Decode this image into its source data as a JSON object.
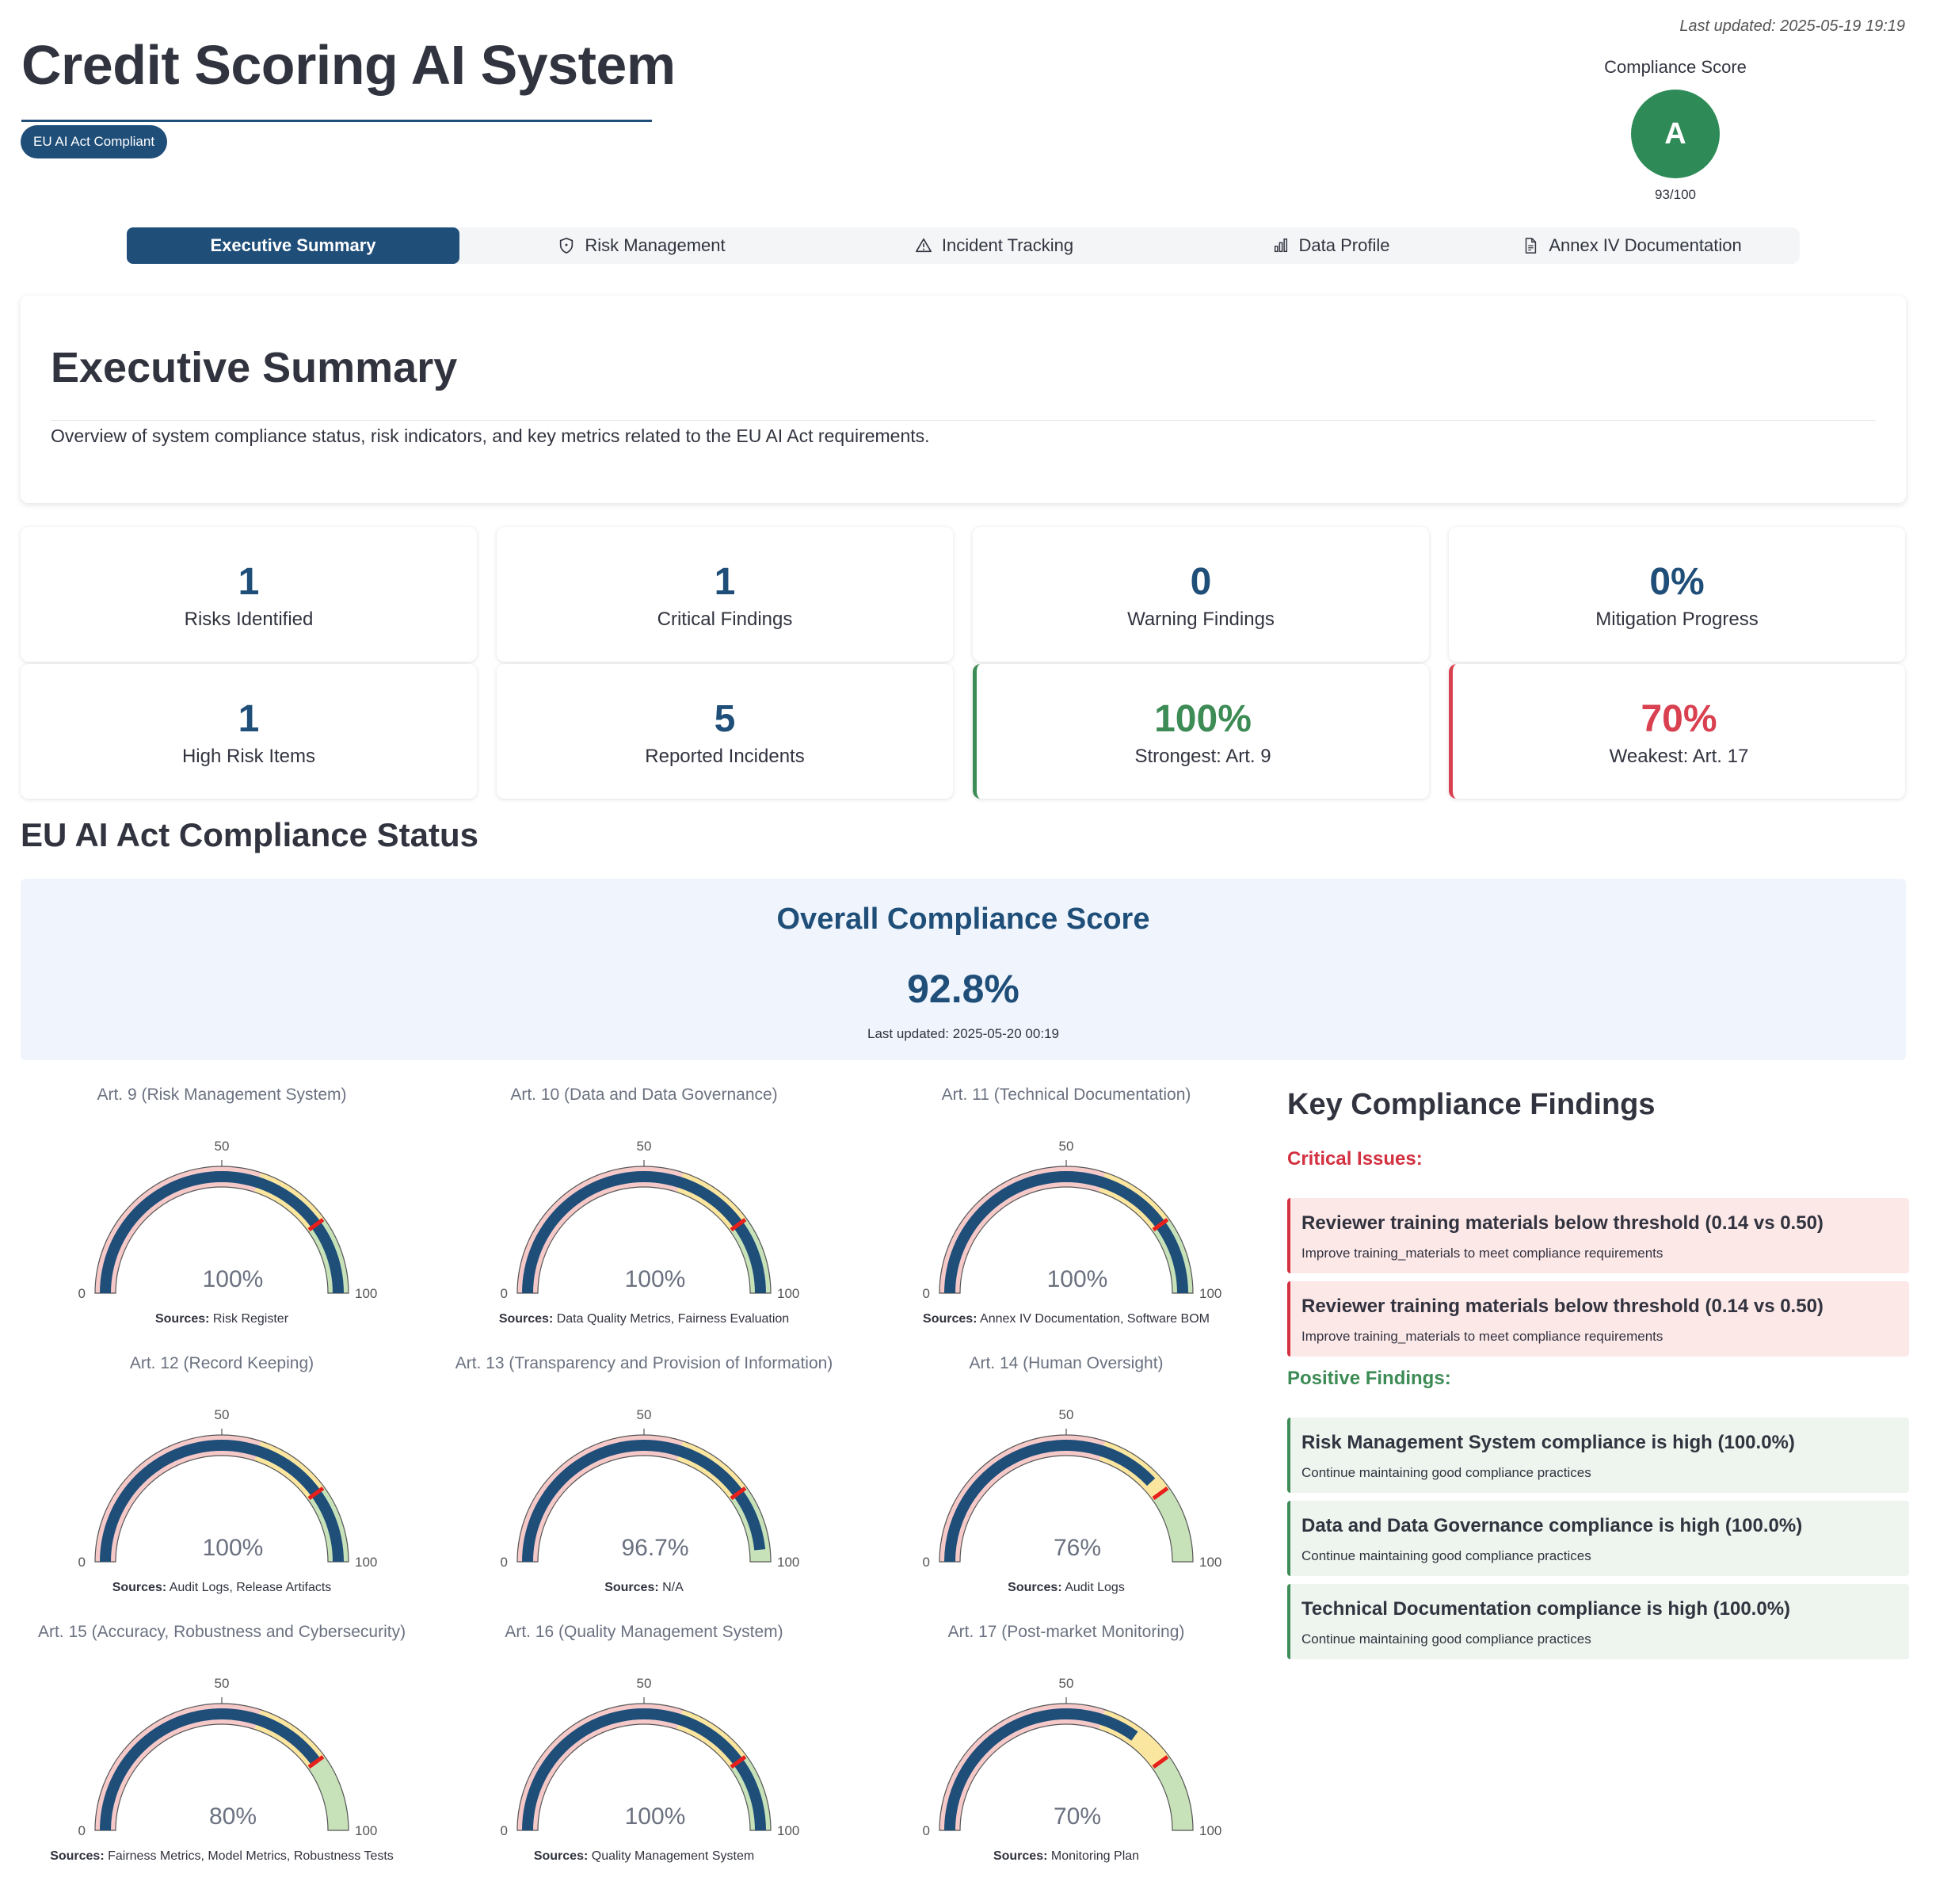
{
  "header": {
    "last_updated": "Last updated: 2025-05-19 19:19",
    "title": "Credit Scoring AI System",
    "badge": "EU AI Act Compliant",
    "compliance_label": "Compliance Score",
    "compliance_grade": "A",
    "compliance_score": "93/100",
    "grade_color": "#2e8b57"
  },
  "tabs": [
    {
      "label": "Executive Summary",
      "icon": "",
      "active": true
    },
    {
      "label": "Risk Management",
      "icon": "shield-icon",
      "active": false
    },
    {
      "label": "Incident Tracking",
      "icon": "warning-icon",
      "active": false
    },
    {
      "label": "Data Profile",
      "icon": "bar-chart-icon",
      "active": false
    },
    {
      "label": "Annex IV Documentation",
      "icon": "document-icon",
      "active": false
    }
  ],
  "executive": {
    "heading": "Executive Summary",
    "description": "Overview of system compliance status, risk indicators, and key metrics related to the EU AI Act requirements."
  },
  "metrics": [
    {
      "value": "1",
      "label": "Risks Identified"
    },
    {
      "value": "1",
      "label": "Critical Findings"
    },
    {
      "value": "0",
      "label": "Warning Findings"
    },
    {
      "value": "0%",
      "label": "Mitigation Progress"
    },
    {
      "value": "1",
      "label": "High Risk Items"
    },
    {
      "value": "5",
      "label": "Reported Incidents"
    },
    {
      "value": "100%",
      "label": "Strongest: Art. 9"
    },
    {
      "value": "70%",
      "label": "Weakest: Art. 17"
    }
  ],
  "compliance": {
    "section_title": "EU AI Act Compliance Status",
    "overall_title": "Overall Compliance Score",
    "overall_value": "92.8%",
    "overall_updated": "Last updated: 2025-05-20 00:19"
  },
  "gauges": [
    {
      "title": "Art. 9 (Risk Management System)",
      "value": 100,
      "display": "100%",
      "sources_label": "Sources:",
      "sources": "Risk Register"
    },
    {
      "title": "Art. 10 (Data and Data Governance)",
      "value": 100,
      "display": "100%",
      "sources_label": "Sources:",
      "sources": "Data Quality Metrics, Fairness Evaluation"
    },
    {
      "title": "Art. 11 (Technical Documentation)",
      "value": 100,
      "display": "100%",
      "sources_label": "Sources:",
      "sources": "Annex IV Documentation, Software BOM"
    },
    {
      "title": "Art. 12 (Record Keeping)",
      "value": 100,
      "display": "100%",
      "sources_label": "Sources:",
      "sources": "Audit Logs, Release Artifacts"
    },
    {
      "title": "Art. 13 (Transparency and Provision of Information)",
      "value": 96.7,
      "display": "96.7%",
      "sources_label": "Sources:",
      "sources": "N/A"
    },
    {
      "title": "Art. 14 (Human Oversight)",
      "value": 76,
      "display": "76%",
      "sources_label": "Sources:",
      "sources": "Audit Logs"
    },
    {
      "title": "Art. 15 (Accuracy, Robustness and Cybersecurity)",
      "value": 80,
      "display": "80%",
      "sources_label": "Sources:",
      "sources": "Fairness Metrics, Model Metrics, Robustness Tests"
    },
    {
      "title": "Art. 16 (Quality Management System)",
      "value": 100,
      "display": "100%",
      "sources_label": "Sources:",
      "sources": "Quality Management System"
    },
    {
      "title": "Art. 17 (Post-market Monitoring)",
      "value": 70,
      "display": "70%",
      "sources_label": "Sources:",
      "sources": "Monitoring Plan"
    }
  ],
  "gauge_scale": {
    "min": 0,
    "max": 100,
    "tick_mid": "50",
    "tick_min": "0",
    "tick_max": "100",
    "threshold": 80,
    "bands": [
      {
        "from": 0,
        "to": 60,
        "color": "#f6c9c9"
      },
      {
        "from": 60,
        "to": 80,
        "color": "#fbe6a0"
      },
      {
        "from": 80,
        "to": 100,
        "color": "#c7e2b8"
      }
    ],
    "bar_color": "#1f4e79",
    "threshold_color": "#e8201c"
  },
  "findings": {
    "heading": "Key Compliance Findings",
    "critical_heading": "Critical Issues:",
    "critical": [
      {
        "title": "Reviewer training materials below threshold (0.14 vs 0.50)",
        "detail": "Improve training_materials to meet compliance requirements"
      },
      {
        "title": "Reviewer training materials below threshold (0.14 vs 0.50)",
        "detail": "Improve training_materials to meet compliance requirements"
      }
    ],
    "positive_heading": "Positive Findings:",
    "positive": [
      {
        "title": "Risk Management System compliance is high (100.0%)",
        "detail": "Continue maintaining good compliance practices"
      },
      {
        "title": "Data and Data Governance compliance is high (100.0%)",
        "detail": "Continue maintaining good compliance practices"
      },
      {
        "title": "Technical Documentation compliance is high (100.0%)",
        "detail": "Continue maintaining good compliance practices"
      }
    ]
  }
}
